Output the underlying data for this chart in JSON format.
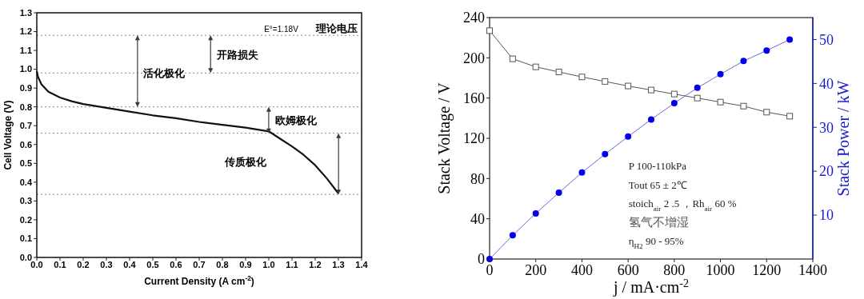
{
  "chart_data": [
    {
      "type": "line",
      "xlabel": "Current Density (A cm$^{-2}$)",
      "ylabel": "Cell Voltage (V)",
      "xlim": [
        0,
        1.4
      ],
      "xticks": [
        {
          "value": 0,
          "label": "0.0"
        },
        0.1,
        0.2,
        0.3,
        0.4,
        0.5,
        0.6,
        0.7,
        0.8,
        0.9,
        {
          "value": 1,
          "label": "1.0"
        },
        1.1,
        1.2,
        1.3,
        1.4
      ],
      "ylim": [
        0,
        1.3
      ],
      "yticks": [
        {
          "value": 0,
          "label": "0.0"
        },
        0.1,
        0.2,
        0.3,
        0.4,
        0.5,
        0.6,
        0.7,
        0.8,
        0.9,
        {
          "value": 1,
          "label": "1.0"
        },
        1.1,
        1.2,
        1.3
      ],
      "grid": false,
      "marker": "none",
      "line_style": "solid",
      "series": [
        {
          "color": "#111111",
          "x": [
            0,
            0.005,
            0.02,
            0.05,
            0.1,
            0.15,
            0.2,
            0.3,
            0.4,
            0.5,
            0.6,
            0.7,
            0.8,
            0.9,
            1.0,
            1.05,
            1.1,
            1.15,
            1.2,
            1.25,
            1.3
          ],
          "values": [
            0.99,
            0.96,
            0.92,
            0.88,
            0.85,
            0.83,
            0.815,
            0.795,
            0.775,
            0.755,
            0.74,
            0.72,
            0.705,
            0.69,
            0.67,
            0.63,
            0.59,
            0.545,
            0.49,
            0.42,
            0.34
          ]
        }
      ],
      "ref_lines": [
        {
          "axis": "y",
          "value": 1.18,
          "label": "E°=1.18V",
          "color": "#888888",
          "line_style": "dotted"
        },
        {
          "axis": "y",
          "value": 0.98,
          "color": "#888888",
          "line_style": "dotted"
        },
        {
          "axis": "y",
          "value": 0.8,
          "color": "#888888",
          "line_style": "dotted"
        },
        {
          "axis": "y",
          "value": 0.66,
          "color": "#888888",
          "line_style": "dotted"
        },
        {
          "axis": "y",
          "value": 0.335,
          "color": "#888888",
          "line_style": "dotted"
        }
      ],
      "annotations": [
        "理论电压",
        "开路损失",
        {
          "text": "活化极化",
          "x": 0.43,
          "y": 0.98
        },
        "欧姆极化",
        "传质极化"
      ]
    },
    {
      "type": "line",
      "xlabel": "j / mA·cm$^{-2}$",
      "ylabel": "Stack Voltage / V",
      "y2label": "Stack Power / kW",
      "x": [
        0,
        100,
        200,
        300,
        400,
        500,
        600,
        700,
        800,
        900,
        1000,
        1100,
        1200,
        1300
      ],
      "xlim": [
        0,
        1400
      ],
      "xticks": [
        0,
        200,
        400,
        600,
        800,
        1000,
        1200,
        1400
      ],
      "ylim": [
        0,
        240
      ],
      "yticks": [
        0,
        40,
        80,
        120,
        160,
        200,
        240
      ],
      "y2lim": [
        0,
        55
      ],
      "y2ticks": [
        10,
        20,
        30,
        40,
        50
      ],
      "grid": false,
      "line_style": "solid",
      "series": [
        {
          "color": "#555555",
          "marker": "square",
          "values": [
            227,
            199,
            191,
            186,
            181,
            176.5,
            172,
            168,
            164,
            160,
            156,
            152,
            146,
            142
          ]
        },
        {
          "color": "#0000ee",
          "marker": "circle",
          "axis": "y2",
          "values": [
            0,
            5.4,
            10.4,
            15.1,
            19.7,
            23.9,
            27.9,
            31.8,
            35.5,
            39.0,
            42.1,
            45.1,
            47.5,
            50.0
          ]
        }
      ],
      "annotations": [
        "P  100-110kPa",
        "Tout  65 ± 2℃",
        "stoich$_{air}$ 2 .5 ，Rh$_{air}$ 60 %",
        "氢气不增湿",
        "η$_{H2}$ 90 - 95%"
      ]
    }
  ]
}
